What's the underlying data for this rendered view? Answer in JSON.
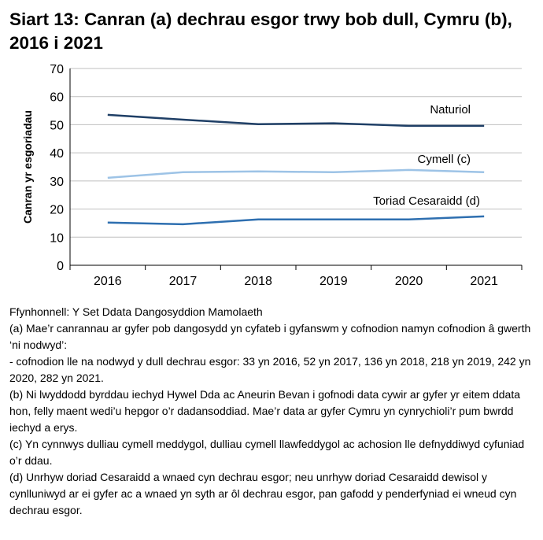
{
  "title": "Siart 13: Canran (a) dechrau esgor trwy bob dull, Cymru (b), 2016 i 2021",
  "chart_data": {
    "type": "line",
    "title": "Siart 13: Canran (a) dechrau esgor trwy bob dull, Cymru (b), 2016 i 2021",
    "ylabel": "Canran yr esgoriadau",
    "xlabel": "",
    "ylim": [
      0,
      70
    ],
    "yticks": [
      0,
      10,
      20,
      30,
      40,
      50,
      60,
      70
    ],
    "grid": true,
    "legend": "inline labels",
    "categories": [
      "2016",
      "2017",
      "2018",
      "2019",
      "2020",
      "2021"
    ],
    "series": [
      {
        "name": "Naturiol",
        "color": "#1f3f66",
        "values": [
          53.5,
          51.8,
          50.2,
          50.5,
          49.6,
          49.6
        ]
      },
      {
        "name": "Cymell (c)",
        "color": "#9dc3e6",
        "values": [
          31.1,
          33.1,
          33.4,
          33.1,
          33.9,
          33.1
        ]
      },
      {
        "name": "Toriad Cesaraidd (d)",
        "color": "#2e6fb0",
        "values": [
          15.2,
          14.6,
          16.3,
          16.3,
          16.3,
          17.4
        ]
      }
    ]
  },
  "notes": [
    "Ffynhonnell: Y Set Ddata Dangosyddion Mamolaeth",
    "(a) Mae’r canrannau ar gyfer pob dangosydd yn cyfateb i gyfanswm y cofnodion namyn cofnodion â gwerth ‘ni nodwyd’:",
    "- cofnodion lle na nodwyd y dull dechrau esgor: 33 yn 2016, 52 yn 2017, 136 yn 2018, 218 yn 2019, 242 yn 2020, 282 yn 2021.",
    "(b) Ni lwyddodd byrddau iechyd Hywel Dda ac Aneurin Bevan i gofnodi data cywir ar gyfer yr eitem ddata hon, felly maent wedi’u hepgor o’r dadansoddiad. Mae’r data ar gyfer Cymru yn cynrychioli’r pum bwrdd iechyd a erys.",
    "(c) Yn cynnwys dulliau cymell meddygol, dulliau cymell llawfeddygol ac achosion lle defnyddiwyd cyfuniad o’r ddau.",
    "(d) Unrhyw doriad Cesaraidd a wnaed cyn dechrau esgor; neu unrhyw doriad Cesaraidd dewisol y cynlluniwyd ar ei gyfer ac a wnaed yn syth ar ôl dechrau esgor, pan gafodd y penderfyniad ei wneud cyn dechrau esgor."
  ]
}
